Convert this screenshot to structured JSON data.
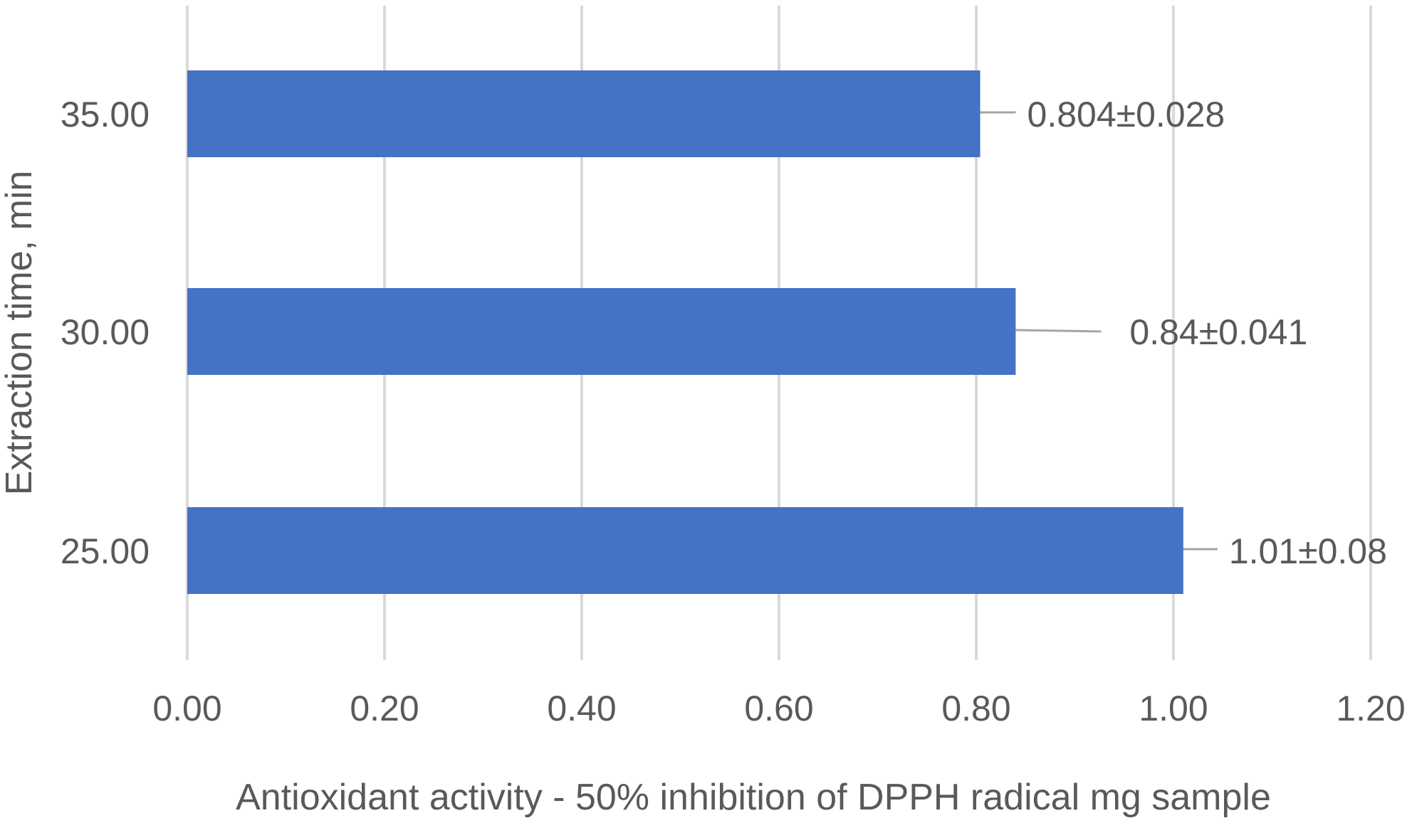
{
  "chart_data": {
    "type": "bar",
    "orientation": "horizontal",
    "categories": [
      "35.00",
      "30.00",
      "25.00"
    ],
    "values": [
      0.804,
      0.84,
      1.01
    ],
    "data_labels": [
      "0.804±0.028",
      "0.84±0.041",
      "1.01±0.08"
    ],
    "xlabel": "Antioxidant activity - 50% inhibition of DPPH radical mg sample",
    "ylabel": "Extraction time, min",
    "xlim": [
      0,
      1.2
    ],
    "x_ticks": [
      "0.00",
      "0.20",
      "0.40",
      "0.60",
      "0.80",
      "1.00",
      "1.20"
    ],
    "x_tick_values": [
      0,
      0.2,
      0.4,
      0.6,
      0.8,
      1.0,
      1.2
    ],
    "grid": "vertical",
    "legend": "none",
    "colors": {
      "bar": "#4472c4",
      "grid": "#d9d9d9",
      "text": "#595959",
      "leader": "#a6a6a6"
    }
  }
}
